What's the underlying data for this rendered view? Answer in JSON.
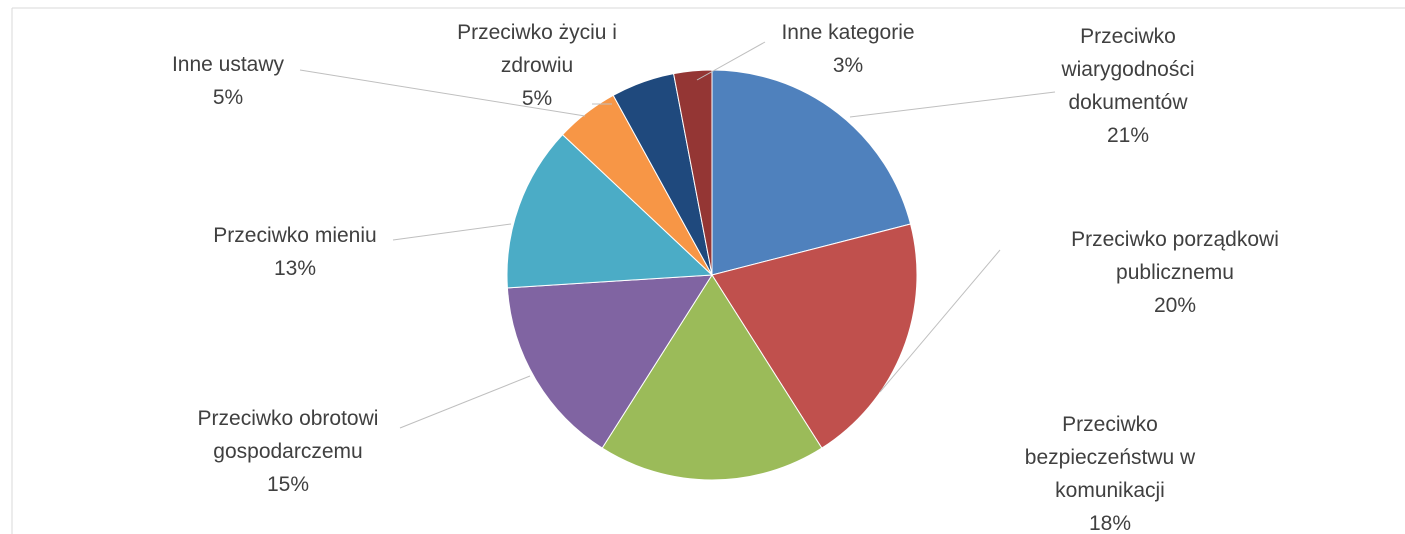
{
  "chart_data": {
    "type": "pie",
    "categories": [
      "Przeciwko wiarygodności dokumentów",
      "Przeciwko porządkowi publicznemu",
      "Przeciwko bezpieczeństwu w komunikacji",
      "Przeciwko obrotowi gospodarczemu",
      "Przeciwko mieniu",
      "Inne ustawy",
      "Przeciwko życiu i zdrowiu",
      "Inne kategorie"
    ],
    "values": [
      21,
      20,
      18,
      15,
      13,
      5,
      5,
      3
    ],
    "value_labels": [
      "21%",
      "20%",
      "18%",
      "15%",
      "13%",
      "5%",
      "5%",
      "3%"
    ],
    "colors": [
      "#4f81bd",
      "#c0504d",
      "#9bbb59",
      "#8064a2",
      "#4bacc6",
      "#f79646",
      "#1f497d",
      "#943634"
    ]
  }
}
